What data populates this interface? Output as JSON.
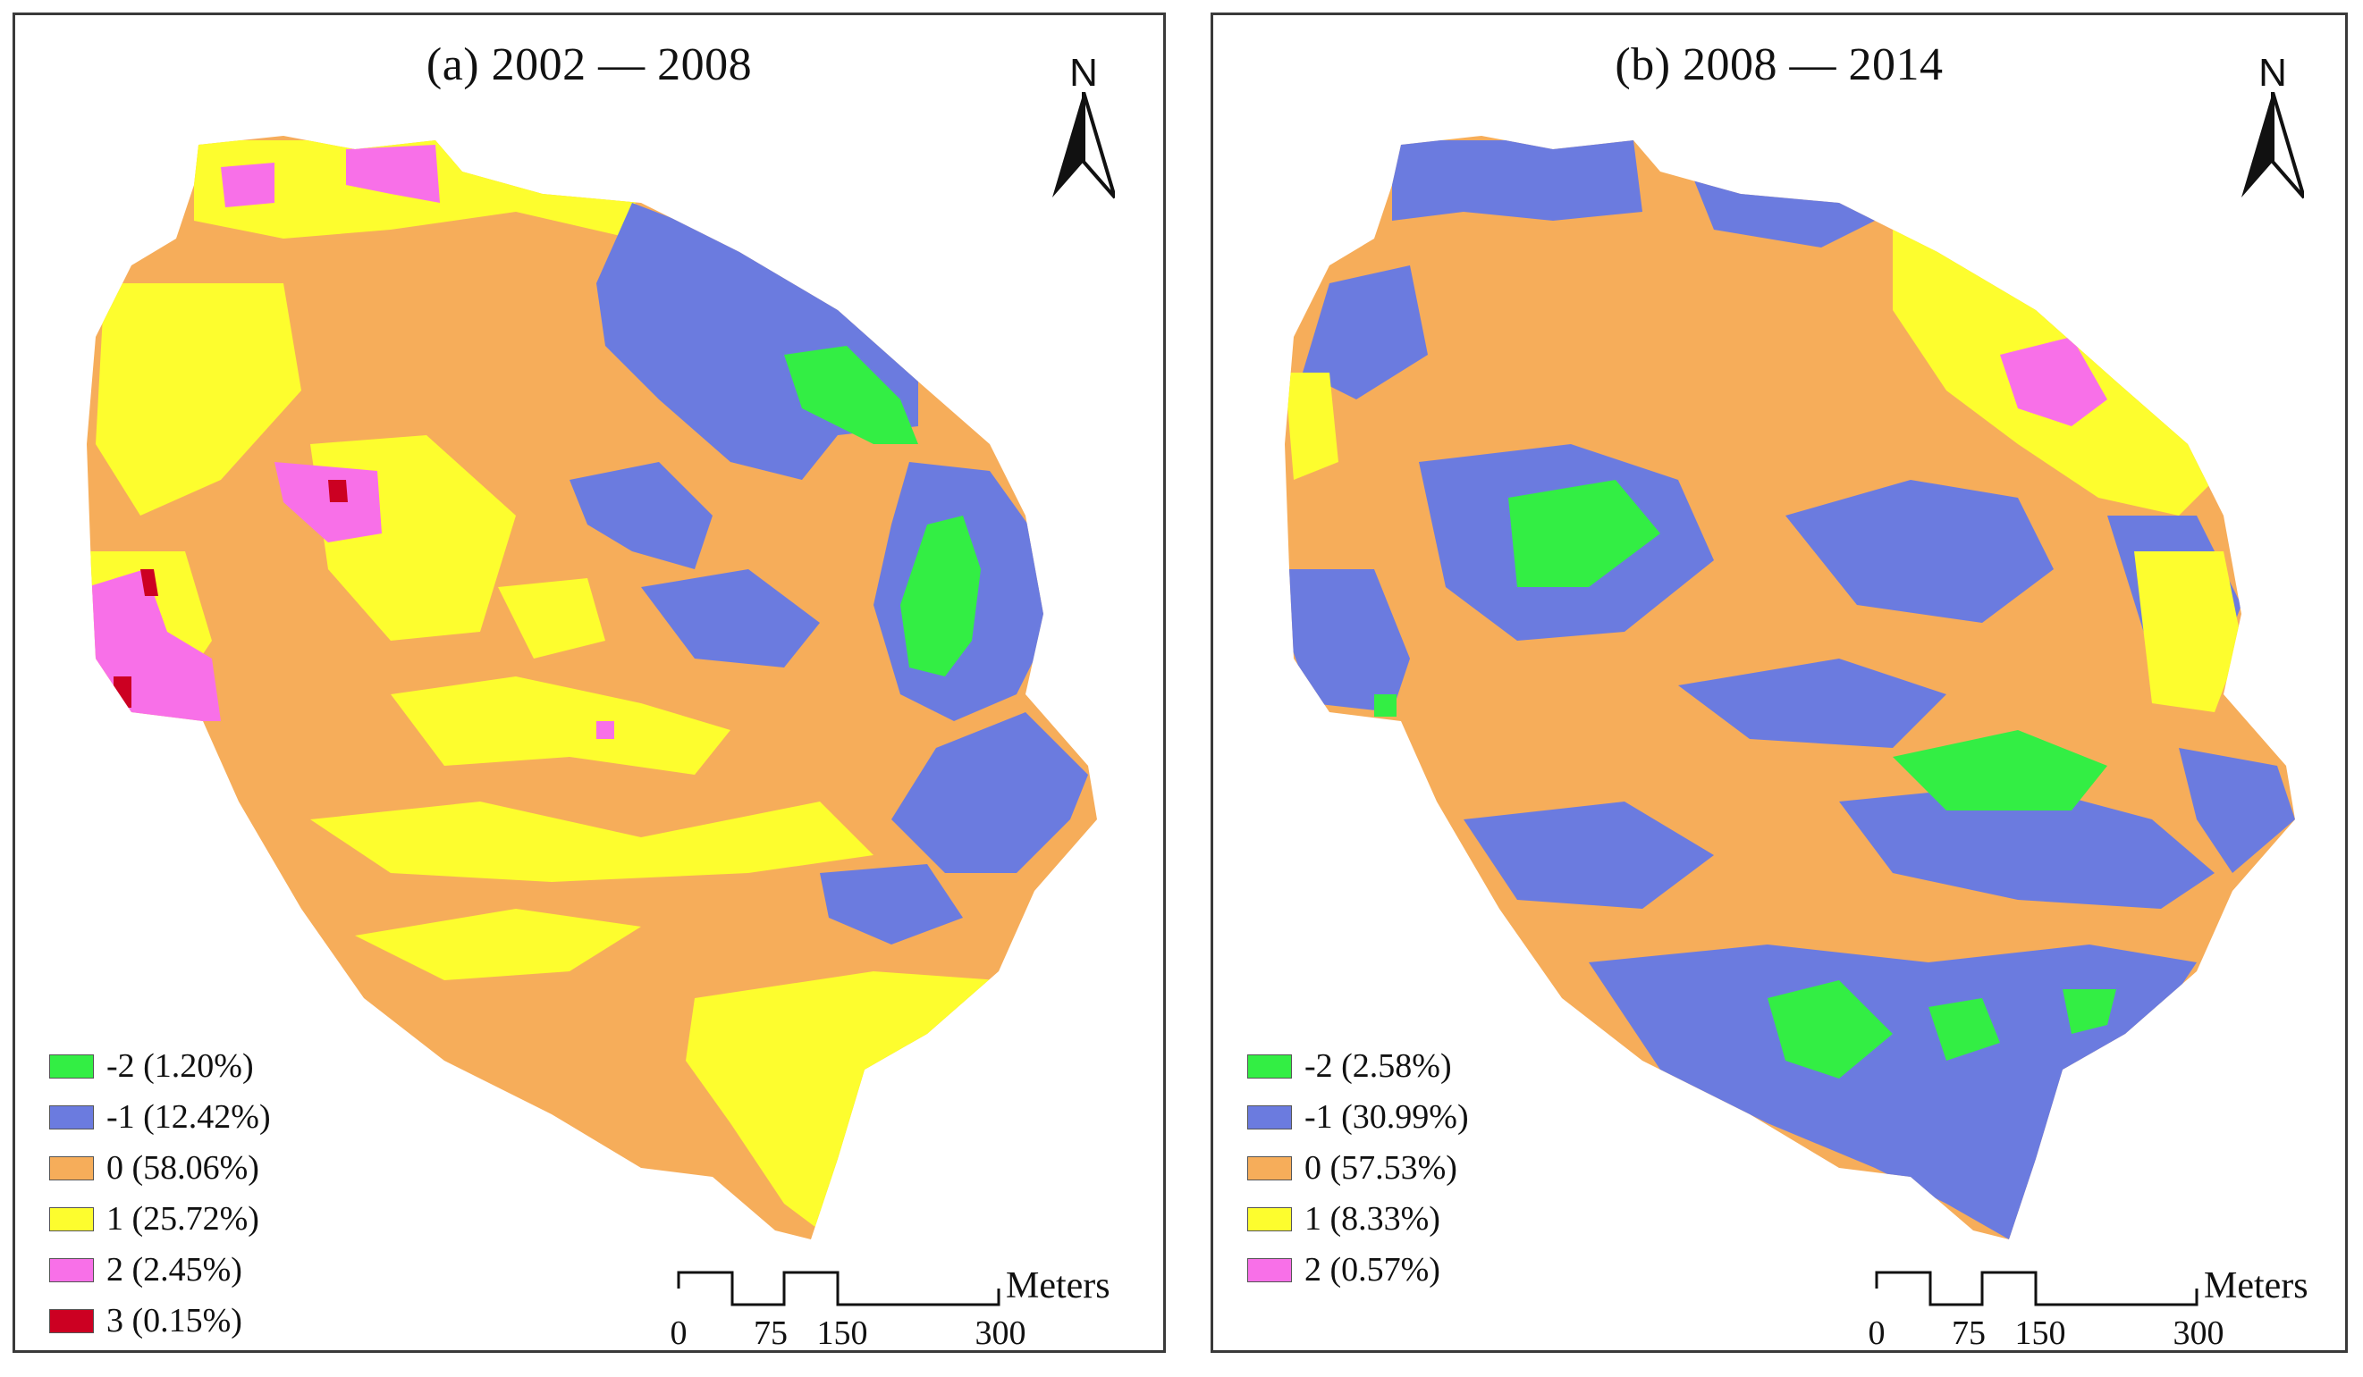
{
  "colors": {
    "-2": "#33ee44",
    "-1": "#6b7bdf",
    "0": "#f6ad5a",
    "1": "#fdfd2e",
    "2": "#f870e8",
    "3": "#cc0022"
  },
  "panels": [
    {
      "title": "(a) 2002 — 2008",
      "north_label": "N",
      "legend": [
        {
          "label": "-2 (1.20%)",
          "cls": "-2"
        },
        {
          "label": "-1 (12.42%)",
          "cls": "-1"
        },
        {
          "label": "0 (58.06%)",
          "cls": "0"
        },
        {
          "label": "1 (25.72%)",
          "cls": "1"
        },
        {
          "label": "2 (2.45%)",
          "cls": "2"
        },
        {
          "label": "3 (0.15%)",
          "cls": "3"
        }
      ],
      "scale": {
        "unit": "Meters",
        "ticks": [
          "0",
          "75",
          "150",
          "300"
        ]
      }
    },
    {
      "title": "(b) 2008 — 2014",
      "north_label": "N",
      "legend": [
        {
          "label": "-2 (2.58%)",
          "cls": "-2"
        },
        {
          "label": "-1 (30.99%)",
          "cls": "-1"
        },
        {
          "label": "0 (57.53%)",
          "cls": "0"
        },
        {
          "label": "1 (8.33%)",
          "cls": "1"
        },
        {
          "label": "2 (0.57%)",
          "cls": "2"
        }
      ],
      "scale": {
        "unit": "Meters",
        "ticks": [
          "0",
          "75",
          "150",
          "300"
        ]
      }
    }
  ]
}
